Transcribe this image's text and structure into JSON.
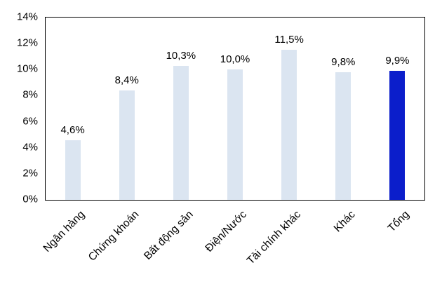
{
  "chart_data": {
    "type": "bar",
    "title": "",
    "xlabel": "",
    "ylabel": "",
    "categories": [
      "Ngân hàng",
      "Chứng khoán",
      "Bất động sản",
      "Điện/Nước",
      "Tài chính khác",
      "Khác",
      "Tổng"
    ],
    "values": [
      4.6,
      8.4,
      10.3,
      10.0,
      11.5,
      9.8,
      9.9
    ],
    "value_labels": [
      "4,6%",
      "8,4%",
      "10,3%",
      "10,0%",
      "11,5%",
      "9,8%",
      "9,9%"
    ],
    "ylim": [
      0,
      14
    ],
    "ytick_step": 2,
    "ytick_labels": [
      "0%",
      "2%",
      "4%",
      "6%",
      "8%",
      "10%",
      "12%",
      "14%"
    ],
    "grid": false,
    "legend": false,
    "bar_color_default": "#dbe5f1",
    "bar_color_highlight": "#0b1ecb",
    "highlight_index": 6,
    "border_color": "#000000"
  }
}
